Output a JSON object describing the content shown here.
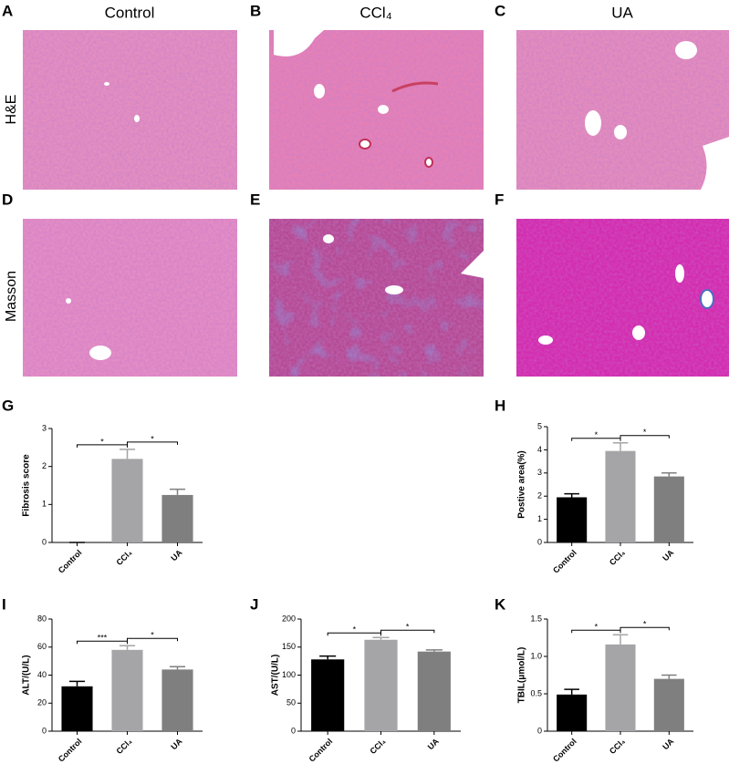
{
  "figure": {
    "panels": [
      "A",
      "B",
      "C",
      "D",
      "E",
      "F"
    ],
    "columns": [
      "Control",
      "CCl₄",
      "UA"
    ],
    "rows": [
      "H&E",
      "Masson"
    ]
  },
  "chart_data": [
    {
      "type": "bar",
      "panel": "G",
      "ylabel": "Fibrosis score",
      "categories": [
        "Control",
        "CCl₄",
        "UA"
      ],
      "values": [
        0,
        2.2,
        1.25
      ],
      "errors": [
        0,
        0.25,
        0.15
      ],
      "colors": [
        "#000000",
        "#a5a5a8",
        "#7f7f7f"
      ],
      "ylim": [
        0,
        3
      ],
      "yticks": [
        0,
        1,
        2,
        3
      ],
      "significance": [
        {
          "between": [
            "Control",
            "CCl₄"
          ],
          "label": "*"
        },
        {
          "between": [
            "CCl₄",
            "UA"
          ],
          "label": "*"
        }
      ]
    },
    {
      "type": "bar",
      "panel": "H",
      "ylabel": "Postive area(%)",
      "categories": [
        "Control",
        "CCl₄",
        "UA"
      ],
      "values": [
        1.95,
        3.95,
        2.85
      ],
      "errors": [
        0.15,
        0.35,
        0.15
      ],
      "colors": [
        "#000000",
        "#a5a5a8",
        "#7f7f7f"
      ],
      "ylim": [
        0,
        5
      ],
      "yticks": [
        0,
        1,
        2,
        3,
        4,
        5
      ],
      "significance": [
        {
          "between": [
            "Control",
            "CCl₄"
          ],
          "label": "*"
        },
        {
          "between": [
            "CCl₄",
            "UA"
          ],
          "label": "*"
        }
      ]
    },
    {
      "type": "bar",
      "panel": "I",
      "ylabel": "ALT/(U/L)",
      "categories": [
        "Control",
        "CCl₄",
        "UA"
      ],
      "values": [
        32,
        58,
        44
      ],
      "errors": [
        3.5,
        3,
        2
      ],
      "colors": [
        "#000000",
        "#a5a5a8",
        "#7f7f7f"
      ],
      "ylim": [
        0,
        80
      ],
      "yticks": [
        0,
        20,
        40,
        60,
        80
      ],
      "significance": [
        {
          "between": [
            "Control",
            "CCl₄"
          ],
          "label": "***"
        },
        {
          "between": [
            "CCl₄",
            "UA"
          ],
          "label": "*"
        }
      ]
    },
    {
      "type": "bar",
      "panel": "J",
      "ylabel": "AST/(U/L)",
      "categories": [
        "Control",
        "CCl₄",
        "UA"
      ],
      "values": [
        128,
        163,
        142
      ],
      "errors": [
        6,
        4,
        3
      ],
      "colors": [
        "#000000",
        "#a5a5a8",
        "#7f7f7f"
      ],
      "ylim": [
        0,
        200
      ],
      "yticks": [
        0,
        50,
        100,
        150,
        200
      ],
      "significance": [
        {
          "between": [
            "Control",
            "CCl₄"
          ],
          "label": "*"
        },
        {
          "between": [
            "CCl₄",
            "UA"
          ],
          "label": "*"
        }
      ]
    },
    {
      "type": "bar",
      "panel": "K",
      "ylabel": "TBIL(μmol/L)",
      "categories": [
        "Control",
        "CCl₄",
        "UA"
      ],
      "values": [
        0.49,
        1.16,
        0.7
      ],
      "errors": [
        0.07,
        0.13,
        0.05
      ],
      "colors": [
        "#000000",
        "#a5a5a8",
        "#7f7f7f"
      ],
      "ylim": [
        0,
        1.5
      ],
      "yticks": [
        0,
        {
          "value": 0.5,
          "label": "0.5"
        },
        {
          "value": 1,
          "label": "1.0"
        },
        {
          "value": 1.5,
          "label": "1.5"
        }
      ],
      "significance": [
        {
          "between": [
            "Control",
            "CCl₄"
          ],
          "label": "*"
        },
        {
          "between": [
            "CCl₄",
            "UA"
          ],
          "label": "*"
        }
      ]
    }
  ]
}
